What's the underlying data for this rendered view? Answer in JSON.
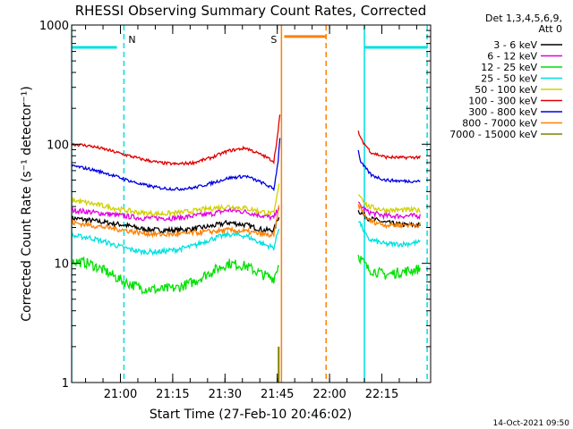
{
  "chart_data": {
    "type": "line",
    "title": "RHESSI Observing Summary Count Rates, Corrected",
    "xlabel": "Start Time (27-Feb-10 20:46:02)",
    "ylabel": "Corrected Count Rate (s⁻¹ detector⁻¹)",
    "x_units": "minutes since 20:46:02",
    "xlim": [
      0,
      103
    ],
    "ylim": [
      1,
      1000
    ],
    "y_scale": "log",
    "x_ticks": [
      {
        "x": 14,
        "label": "21:00"
      },
      {
        "x": 29,
        "label": "21:15"
      },
      {
        "x": 44,
        "label": "21:30"
      },
      {
        "x": 59,
        "label": "21:45"
      },
      {
        "x": 74,
        "label": "22:00"
      },
      {
        "x": 89,
        "label": "22:15"
      }
    ],
    "y_ticks": [
      {
        "y": 1,
        "label": "1"
      },
      {
        "y": 10,
        "label": "10"
      },
      {
        "y": 100,
        "label": "100"
      },
      {
        "y": 1000,
        "label": "1000"
      }
    ],
    "legend_header": [
      "Det 1,3,4,5,6,9,",
      "Att 0"
    ],
    "legend_placement": "top-right",
    "series": [
      {
        "name": "3 - 6 keV",
        "color": "#000000",
        "x": [
          0,
          5,
          10,
          15,
          20,
          25,
          30,
          35,
          40,
          45,
          50,
          55,
          58,
          59.5,
          60,
          82,
          85,
          90,
          95,
          100
        ],
        "y": [
          24,
          23,
          22,
          21,
          19.5,
          19,
          19,
          19.5,
          20.5,
          22,
          21,
          19,
          19,
          25,
          0,
          28,
          24,
          22,
          21,
          21
        ]
      },
      {
        "name": "6 - 12 keV",
        "color": "#e000e0",
        "x": [
          0,
          5,
          10,
          15,
          20,
          25,
          30,
          35,
          40,
          45,
          50,
          55,
          58,
          59.5,
          60,
          82,
          85,
          90,
          95,
          100
        ],
        "y": [
          28,
          27,
          26,
          25,
          24,
          24,
          24,
          25,
          26,
          28,
          27,
          25,
          24,
          30,
          0,
          32,
          27,
          25,
          25,
          25
        ]
      },
      {
        "name": "12 - 25 keV",
        "color": "#00e000",
        "x": [
          0,
          5,
          10,
          15,
          20,
          25,
          30,
          35,
          40,
          45,
          50,
          55,
          58,
          59.5,
          60,
          82,
          85,
          90,
          95,
          100
        ],
        "y": [
          10.5,
          10,
          8.5,
          7,
          6.2,
          6,
          6.2,
          7,
          8.5,
          10,
          9.5,
          8,
          7.5,
          10,
          0,
          12,
          9,
          8,
          8.5,
          9
        ]
      },
      {
        "name": "25 - 50 keV",
        "color": "#00e0e0",
        "x": [
          0,
          5,
          10,
          15,
          20,
          25,
          30,
          35,
          40,
          45,
          50,
          55,
          58,
          59.5,
          60,
          82,
          85,
          90,
          95,
          100
        ],
        "y": [
          17,
          16.5,
          15,
          13.5,
          12.5,
          12.5,
          13,
          14,
          16,
          17.5,
          17,
          14.5,
          13.5,
          20,
          0,
          24,
          16,
          14.5,
          14.5,
          15
        ]
      },
      {
        "name": "50 - 100 keV",
        "color": "#d0d000",
        "x": [
          0,
          5,
          10,
          15,
          20,
          25,
          30,
          35,
          40,
          45,
          50,
          55,
          58,
          59.5,
          60,
          82,
          85,
          90,
          95,
          100
        ],
        "y": [
          34,
          32,
          30,
          28,
          26.5,
          26,
          26.5,
          27.5,
          29,
          30,
          29,
          27,
          26,
          45,
          0,
          40,
          30,
          28,
          28,
          28
        ]
      },
      {
        "name": "100 - 300 keV",
        "color": "#e00000",
        "x": [
          0,
          5,
          10,
          15,
          20,
          25,
          30,
          35,
          40,
          45,
          50,
          55,
          58,
          59.2,
          59.8,
          60,
          82,
          83,
          86,
          90,
          95,
          100
        ],
        "y": [
          100,
          97,
          90,
          82,
          75,
          70,
          68,
          70,
          77,
          88,
          93,
          80,
          72,
          125,
          180,
          0,
          135,
          110,
          85,
          78,
          77,
          78
        ]
      },
      {
        "name": "300 - 800 keV",
        "color": "#0000e0",
        "x": [
          0,
          5,
          10,
          15,
          20,
          25,
          30,
          35,
          40,
          45,
          50,
          55,
          58,
          59.2,
          59.8,
          60,
          82,
          83,
          86,
          90,
          95,
          100
        ],
        "y": [
          66,
          62,
          57,
          51,
          46,
          43,
          42,
          43,
          47,
          52,
          54,
          47,
          42,
          70,
          120,
          0,
          95,
          70,
          55,
          50,
          49,
          49
        ]
      },
      {
        "name": "800 - 7000 keV",
        "color": "#ff8000",
        "x": [
          0,
          5,
          10,
          15,
          20,
          25,
          30,
          35,
          40,
          45,
          50,
          55,
          58,
          59.5,
          60,
          82,
          85,
          90,
          95,
          100
        ],
        "y": [
          22,
          21,
          20,
          19,
          18,
          17.5,
          17.5,
          18,
          18.5,
          19,
          18.5,
          17.5,
          17,
          30,
          0,
          32,
          23,
          21,
          21,
          21
        ]
      },
      {
        "name": "7000 - 15000 keV",
        "color": "#808000",
        "x": [
          59.3,
          59.4,
          59.5,
          59.6
        ],
        "y": [
          0,
          2,
          2,
          0
        ]
      }
    ],
    "annotations": [
      {
        "type": "attenuator_bar",
        "label": "",
        "x_start": 0,
        "x_end": 13,
        "y": 650,
        "color": "#00e0e0"
      },
      {
        "type": "attenuator_bar",
        "label": "",
        "x_start": 84,
        "x_end": 102,
        "y": 650,
        "color": "#00e0e0"
      },
      {
        "type": "saa_bar",
        "label": "",
        "x_start": 61,
        "x_end": 73,
        "y": 800,
        "color": "#ff8000"
      },
      {
        "type": "vertical_line_solid",
        "x": 0,
        "color": "#00e0e0"
      },
      {
        "type": "vertical_line_dashed",
        "x": 15,
        "color": "#00e0e0",
        "label": "N"
      },
      {
        "type": "vertical_line_solid",
        "x": 84,
        "color": "#00e0e0"
      },
      {
        "type": "vertical_line_dashed",
        "x": 102,
        "color": "#00e0e0"
      },
      {
        "type": "vertical_line_solid",
        "x": 60.2,
        "color": "#ff8000",
        "label": "S"
      },
      {
        "type": "vertical_line_dashed",
        "x": 73,
        "color": "#ff8000"
      }
    ]
  },
  "footer_timestamp": "14-Oct-2021 09:50"
}
